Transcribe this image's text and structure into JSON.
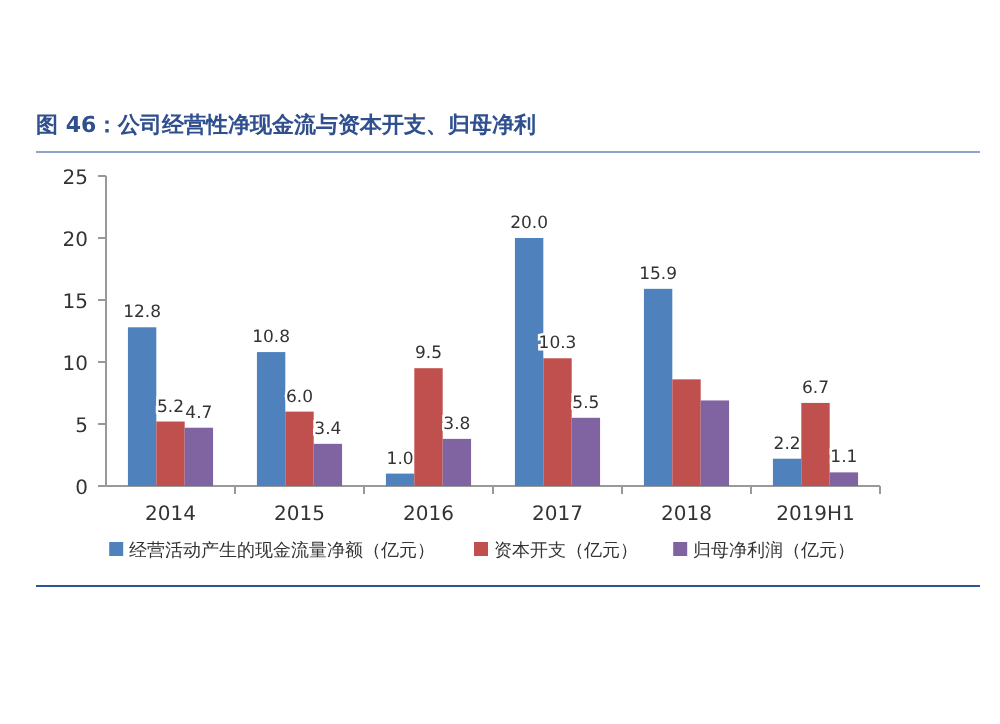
{
  "chart_data": {
    "type": "bar",
    "title": "图 46：公司经营性净现金流与资本开支、归母净利",
    "categories": [
      "2014",
      "2015",
      "2016",
      "2017",
      "2018",
      "2019H1"
    ],
    "series": [
      {
        "name": "经营活动产生的现金流量净额（亿元）",
        "color": "#4f81bd",
        "values": [
          12.8,
          10.8,
          1.0,
          20.0,
          15.9,
          2.2
        ],
        "value_labels": [
          "12.8",
          "10.8",
          "1.0",
          "20.0",
          "15.9",
          "2.2"
        ]
      },
      {
        "name": "资本开支（亿元）",
        "color": "#c0504d",
        "values": [
          5.2,
          6.0,
          9.5,
          10.3,
          8.6,
          6.7
        ],
        "value_labels": [
          "5.2",
          "6.0",
          "9.5",
          "10.3",
          null,
          "6.7"
        ]
      },
      {
        "name": "归母净利润（亿元）",
        "color": "#8064a2",
        "values": [
          4.7,
          3.4,
          3.8,
          5.5,
          6.9,
          1.1
        ],
        "value_labels": [
          "4.7",
          "3.4",
          "3.8",
          "5.5",
          null,
          "1.1"
        ]
      }
    ],
    "ylim": [
      0,
      25
    ],
    "yticks": [
      0,
      5,
      10,
      15,
      20,
      25
    ],
    "grid": false,
    "legend": "bottom"
  }
}
